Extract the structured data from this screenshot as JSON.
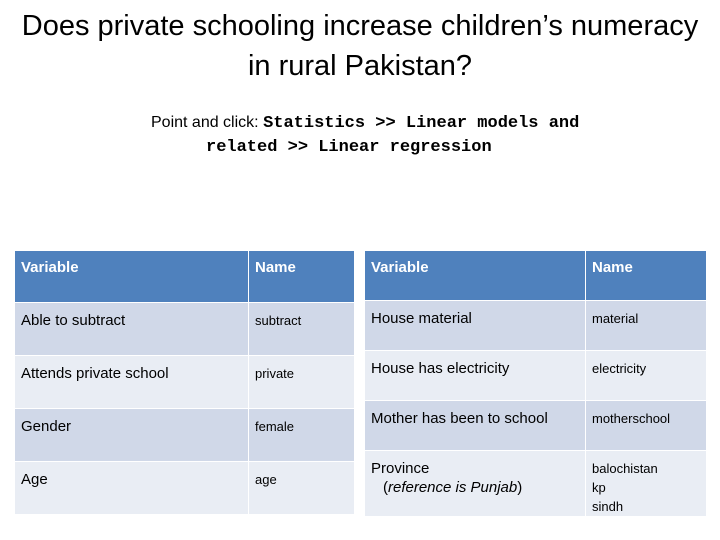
{
  "slide": {
    "title": "Does private schooling increase children’s numeracy in rural Pakistan?",
    "instruction": {
      "prefix": "Point and click: ",
      "path_line1": "Statistics >> Linear models and",
      "path_line2": "related >> Linear regression"
    }
  },
  "table_left": {
    "headers": [
      "Variable",
      "Name"
    ],
    "rows": [
      {
        "variable": "Able to subtract",
        "name": "subtract"
      },
      {
        "variable": "Attends private school",
        "name": "private"
      },
      {
        "variable": "Gender",
        "name": "female"
      },
      {
        "variable": "Age",
        "name": "age"
      }
    ]
  },
  "table_right": {
    "headers": [
      "Variable",
      "Name"
    ],
    "rows": [
      {
        "variable": "House material",
        "name": "material"
      },
      {
        "variable": "House has electricity",
        "name": "electricity"
      },
      {
        "variable": "Mother has been to school",
        "name": "motherschool"
      },
      {
        "variable": "Province",
        "note_open": "(",
        "note_italic": "reference is Punjab",
        "note_close": ")",
        "names": [
          "balochistan",
          "kp",
          "sindh"
        ]
      }
    ]
  },
  "colors": {
    "header": "#4f81bd",
    "row_dark": "#d0d8e8",
    "row_light": "#e9edf4"
  }
}
